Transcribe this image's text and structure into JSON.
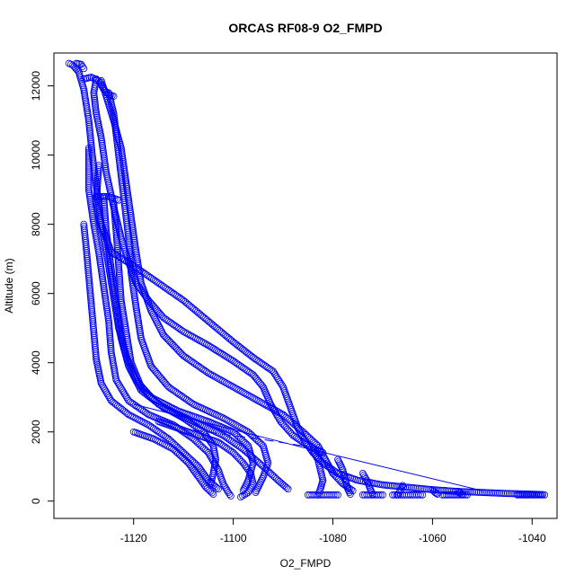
{
  "chart_data": {
    "type": "scatter",
    "title": "ORCAS RF08-9 O2_FMPD",
    "xlabel": "O2_FMPD",
    "ylabel": "Altitude (m)",
    "xlim": [
      -1136,
      -1035
    ],
    "ylim": [
      -500,
      12950
    ],
    "xticks": [
      -1120,
      -1100,
      -1080,
      -1060,
      -1040
    ],
    "yticks": [
      0,
      2000,
      4000,
      6000,
      8000,
      10000,
      12000
    ],
    "marker": "open-circle",
    "color": "#0000ff",
    "segments": [
      [
        [
          -1133,
          12650
        ],
        [
          -1132.2,
          12600
        ],
        [
          -1131,
          12400
        ],
        [
          -1130,
          11900
        ],
        [
          -1129,
          11000
        ],
        [
          -1128.3,
          10000
        ],
        [
          -1127.2,
          8800
        ],
        [
          -1126.5,
          8000
        ],
        [
          -1124.5,
          7200
        ],
        [
          -1120,
          6800
        ],
        [
          -1115,
          6300
        ],
        [
          -1110,
          5800
        ],
        [
          -1105,
          5200
        ],
        [
          -1100,
          4600
        ],
        [
          -1096,
          4150
        ],
        [
          -1092,
          3750
        ],
        [
          -1090,
          3300
        ],
        [
          -1088.5,
          2700
        ],
        [
          -1087,
          2100
        ],
        [
          -1085.5,
          1700
        ],
        [
          -1084,
          1400
        ],
        [
          -1082,
          1100
        ],
        [
          -1079,
          800
        ],
        [
          -1075,
          600
        ],
        [
          -1070,
          470
        ],
        [
          -1065,
          400
        ],
        [
          -1060,
          330
        ],
        [
          -1055,
          280
        ],
        [
          -1050,
          250
        ],
        [
          -1045,
          220
        ],
        [
          -1040,
          200
        ],
        [
          -1038,
          190
        ]
      ],
      [
        [
          -1127.5,
          12200
        ],
        [
          -1128,
          11800
        ],
        [
          -1127.5,
          11200
        ],
        [
          -1126.5,
          10500
        ],
        [
          -1125.5,
          9500
        ],
        [
          -1124,
          8500
        ],
        [
          -1122.5,
          7600
        ],
        [
          -1121,
          6900
        ],
        [
          -1119.5,
          6300
        ],
        [
          -1117,
          5800
        ],
        [
          -1114,
          5300
        ],
        [
          -1110,
          4900
        ],
        [
          -1105,
          4500
        ],
        [
          -1100,
          4050
        ],
        [
          -1096,
          3650
        ],
        [
          -1094,
          3300
        ],
        [
          -1092.5,
          2800
        ],
        [
          -1090.5,
          2300
        ],
        [
          -1088,
          1900
        ],
        [
          -1085,
          1600
        ],
        [
          -1082,
          1400
        ]
      ],
      [
        [
          -1126.5,
          12150
        ],
        [
          -1125.5,
          11700
        ],
        [
          -1124,
          11000
        ],
        [
          -1122.5,
          10200
        ],
        [
          -1121.5,
          9200
        ],
        [
          -1120.5,
          8200
        ],
        [
          -1119.5,
          7200
        ],
        [
          -1118.5,
          6300
        ],
        [
          -1116.5,
          5500
        ],
        [
          -1114,
          4800
        ],
        [
          -1110,
          4200
        ],
        [
          -1105,
          3700
        ],
        [
          -1100,
          3300
        ],
        [
          -1095,
          2900
        ],
        [
          -1090,
          2500
        ],
        [
          -1086,
          2000
        ],
        [
          -1083,
          1600
        ],
        [
          -1081.5,
          1200
        ],
        [
          -1080,
          800
        ],
        [
          -1078,
          500
        ],
        [
          -1076,
          300
        ]
      ],
      [
        [
          -1125,
          11800
        ],
        [
          -1124,
          11200
        ],
        [
          -1123,
          10000
        ],
        [
          -1122,
          8800
        ],
        [
          -1121,
          7600
        ],
        [
          -1120.5,
          6600
        ],
        [
          -1119.5,
          5600
        ],
        [
          -1118.5,
          4700
        ],
        [
          -1116.5,
          3900
        ],
        [
          -1113,
          3300
        ],
        [
          -1108,
          2800
        ],
        [
          -1102,
          2400
        ],
        [
          -1097,
          2000
        ],
        [
          -1094,
          1600
        ],
        [
          -1093,
          1100
        ],
        [
          -1094,
          700
        ],
        [
          -1095,
          400
        ],
        [
          -1095.5,
          250
        ]
      ],
      [
        [
          -1129,
          10200
        ],
        [
          -1129,
          9000
        ],
        [
          -1128,
          8000
        ],
        [
          -1127,
          7200
        ],
        [
          -1126,
          6200
        ],
        [
          -1125,
          5200
        ],
        [
          -1124.5,
          4300
        ],
        [
          -1123.5,
          3500
        ],
        [
          -1121,
          2900
        ],
        [
          -1117,
          2500
        ],
        [
          -1112,
          2200
        ],
        [
          -1108,
          1800
        ],
        [
          -1105,
          1400
        ],
        [
          -1103,
          900
        ],
        [
          -1102,
          500
        ],
        [
          -1101,
          250
        ],
        [
          -1100.5,
          150
        ]
      ],
      [
        [
          -1127,
          9700
        ],
        [
          -1127.5,
          8600
        ],
        [
          -1126,
          7600
        ],
        [
          -1125,
          6800
        ],
        [
          -1124,
          5900
        ],
        [
          -1123,
          5000
        ],
        [
          -1121.5,
          4200
        ],
        [
          -1119.5,
          3500
        ],
        [
          -1116.5,
          3000
        ],
        [
          -1111,
          2600
        ],
        [
          -1105,
          2300
        ],
        [
          -1100,
          2000
        ],
        [
          -1097,
          1600
        ],
        [
          -1096,
          1100
        ],
        [
          -1097,
          600
        ],
        [
          -1098,
          300
        ]
      ],
      [
        [
          -1130,
          8000
        ],
        [
          -1129.5,
          7300
        ],
        [
          -1129,
          6500
        ],
        [
          -1128.5,
          5700
        ],
        [
          -1128,
          4900
        ],
        [
          -1127.5,
          4100
        ],
        [
          -1126.5,
          3400
        ],
        [
          -1124.5,
          2900
        ],
        [
          -1121,
          2500
        ],
        [
          -1117,
          2200
        ],
        [
          -1113,
          1800
        ],
        [
          -1110,
          1400
        ],
        [
          -1107,
          1000
        ],
        [
          -1105,
          600
        ],
        [
          -1103,
          350
        ]
      ],
      [
        [
          -1126,
          8800
        ],
        [
          -1125.5,
          7800
        ],
        [
          -1124.5,
          6700
        ],
        [
          -1123.5,
          5700
        ],
        [
          -1122.5,
          4700
        ],
        [
          -1121,
          3900
        ],
        [
          -1118.5,
          3200
        ],
        [
          -1114,
          2700
        ],
        [
          -1108,
          2300
        ],
        [
          -1102,
          1900
        ],
        [
          -1098,
          1500
        ],
        [
          -1094,
          1000
        ],
        [
          -1091,
          600
        ],
        [
          -1089,
          350
        ]
      ],
      [
        [
          -1124,
          8600
        ],
        [
          -1123.5,
          7800
        ],
        [
          -1123,
          6800
        ],
        [
          -1122.5,
          5800
        ],
        [
          -1121.5,
          4900
        ],
        [
          -1120.5,
          4000
        ],
        [
          -1118.5,
          3300
        ],
        [
          -1115,
          2800
        ],
        [
          -1110,
          2400
        ],
        [
          -1106,
          2000
        ],
        [
          -1104,
          1600
        ],
        [
          -1103.5,
          1200
        ],
        [
          -1104,
          800
        ],
        [
          -1104.5,
          500
        ]
      ],
      [
        [
          -1115,
          2300
        ],
        [
          -1111,
          2100
        ],
        [
          -1107,
          1900
        ],
        [
          -1103,
          1700
        ],
        [
          -1100,
          1400
        ],
        [
          -1098,
          1100
        ],
        [
          -1096.5,
          800
        ],
        [
          -1096,
          500
        ],
        [
          -1097,
          250
        ],
        [
          -1098.5,
          120
        ]
      ],
      [
        [
          -1120,
          2000
        ],
        [
          -1116,
          1800
        ],
        [
          -1112,
          1500
        ],
        [
          -1109,
          1100
        ],
        [
          -1107,
          700
        ],
        [
          -1105.5,
          400
        ],
        [
          -1104,
          200
        ]
      ],
      [
        [
          -1084,
          1450
        ],
        [
          -1083,
          1200
        ],
        [
          -1082.5,
          900
        ],
        [
          -1082,
          600
        ],
        [
          -1082.5,
          350
        ],
        [
          -1083,
          180
        ]
      ],
      [
        [
          -1079,
          1200
        ],
        [
          -1078,
          900
        ],
        [
          -1077.5,
          600
        ],
        [
          -1077,
          350
        ],
        [
          -1076.5,
          200
        ]
      ],
      [
        [
          -1074,
          800
        ],
        [
          -1073,
          550
        ],
        [
          -1072.5,
          350
        ],
        [
          -1072,
          200
        ]
      ],
      [
        [
          -1066,
          450
        ],
        [
          -1066.5,
          300
        ],
        [
          -1067,
          180
        ]
      ],
      [
        [
          -1060,
          320
        ],
        [
          -1059.5,
          250
        ],
        [
          -1059,
          200
        ]
      ],
      [
        [
          -1055,
          280
        ],
        [
          -1054.5,
          230
        ],
        [
          -1054,
          200
        ]
      ],
      [
        [
          -1085,
          180
        ],
        [
          -1079,
          180
        ]
      ],
      [
        [
          -1074,
          180
        ],
        [
          -1070,
          180
        ]
      ],
      [
        [
          -1068,
          180
        ],
        [
          -1062,
          180
        ]
      ],
      [
        [
          -1058,
          180
        ],
        [
          -1053,
          180
        ]
      ],
      [
        [
          -1043,
          180
        ],
        [
          -1037.5,
          180
        ]
      ],
      [
        [
          -1130,
          12200
        ],
        [
          -1128.5,
          12250
        ],
        [
          -1127,
          12150
        ],
        [
          -1126,
          11900
        ],
        [
          -1125,
          11750
        ],
        [
          -1124,
          11700
        ]
      ],
      [
        [
          -1127.5,
          8800
        ],
        [
          -1125,
          8800
        ],
        [
          -1123,
          8700
        ]
      ],
      [
        [
          -1131.5,
          12650
        ],
        [
          -1130.5,
          12620
        ],
        [
          -1130,
          12500
        ]
      ]
    ],
    "connecting_lines": [
      {
        "style": "solid",
        "points": [
          [
            -1120,
            2800
          ],
          [
            -1086,
            1550
          ],
          [
            -1050,
            300
          ]
        ]
      },
      {
        "style": "dashed",
        "points": [
          [
            -1108,
            2050
          ],
          [
            -1094,
            1780
          ],
          [
            -1084,
            1550
          ]
        ]
      }
    ]
  }
}
